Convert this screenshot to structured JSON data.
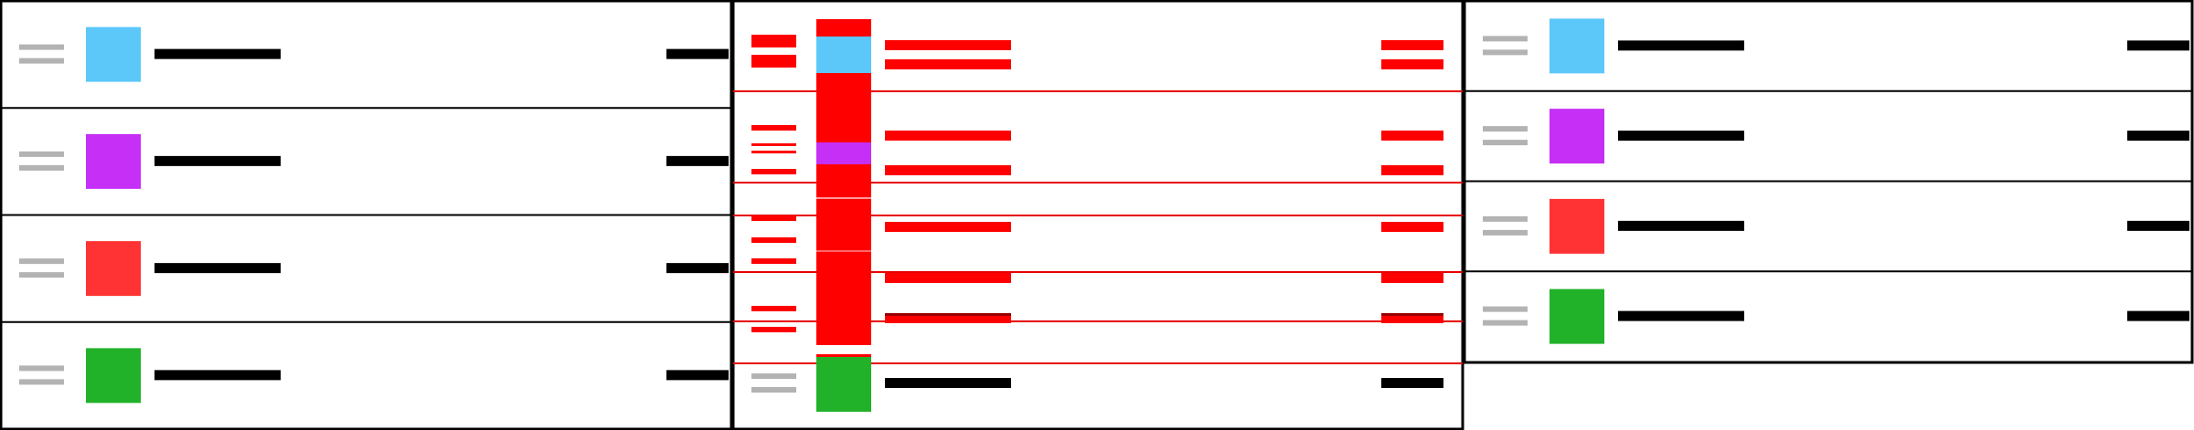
{
  "colors": {
    "background": "#ffffff",
    "border": "#000000",
    "handle": "#b3b3b3",
    "label_bar": "#000000",
    "highlight": "#ff0000",
    "highlight_line": "#e60000",
    "swatch_blue": "#5cc8fa",
    "swatch_purple": "#c62ff5",
    "swatch_red": "#ff3333",
    "swatch_green": "#22b22a"
  },
  "panels": [
    {
      "role": "before",
      "items": [
        {
          "swatch": "swatch_blue",
          "icon": "drag-handle-icon"
        },
        {
          "swatch": "swatch_purple",
          "icon": "drag-handle-icon"
        },
        {
          "swatch": "swatch_red",
          "icon": "drag-handle-icon"
        },
        {
          "swatch": "swatch_green",
          "icon": "drag-handle-icon"
        }
      ]
    },
    {
      "role": "transition",
      "items": [
        {
          "swatch": "swatch_blue",
          "highlighted": true
        },
        {
          "swatch": "swatch_purple",
          "highlighted": true
        },
        {
          "swatch": "swatch_red",
          "highlighted": true
        },
        {
          "swatch": "swatch_red",
          "highlighted": true
        },
        {
          "swatch": "swatch_green",
          "highlighted": false
        }
      ]
    },
    {
      "role": "after",
      "items": [
        {
          "swatch": "swatch_blue",
          "icon": "drag-handle-icon"
        },
        {
          "swatch": "swatch_purple",
          "icon": "drag-handle-icon"
        },
        {
          "swatch": "swatch_red",
          "icon": "drag-handle-icon"
        },
        {
          "swatch": "swatch_green",
          "icon": "drag-handle-icon"
        }
      ]
    }
  ]
}
